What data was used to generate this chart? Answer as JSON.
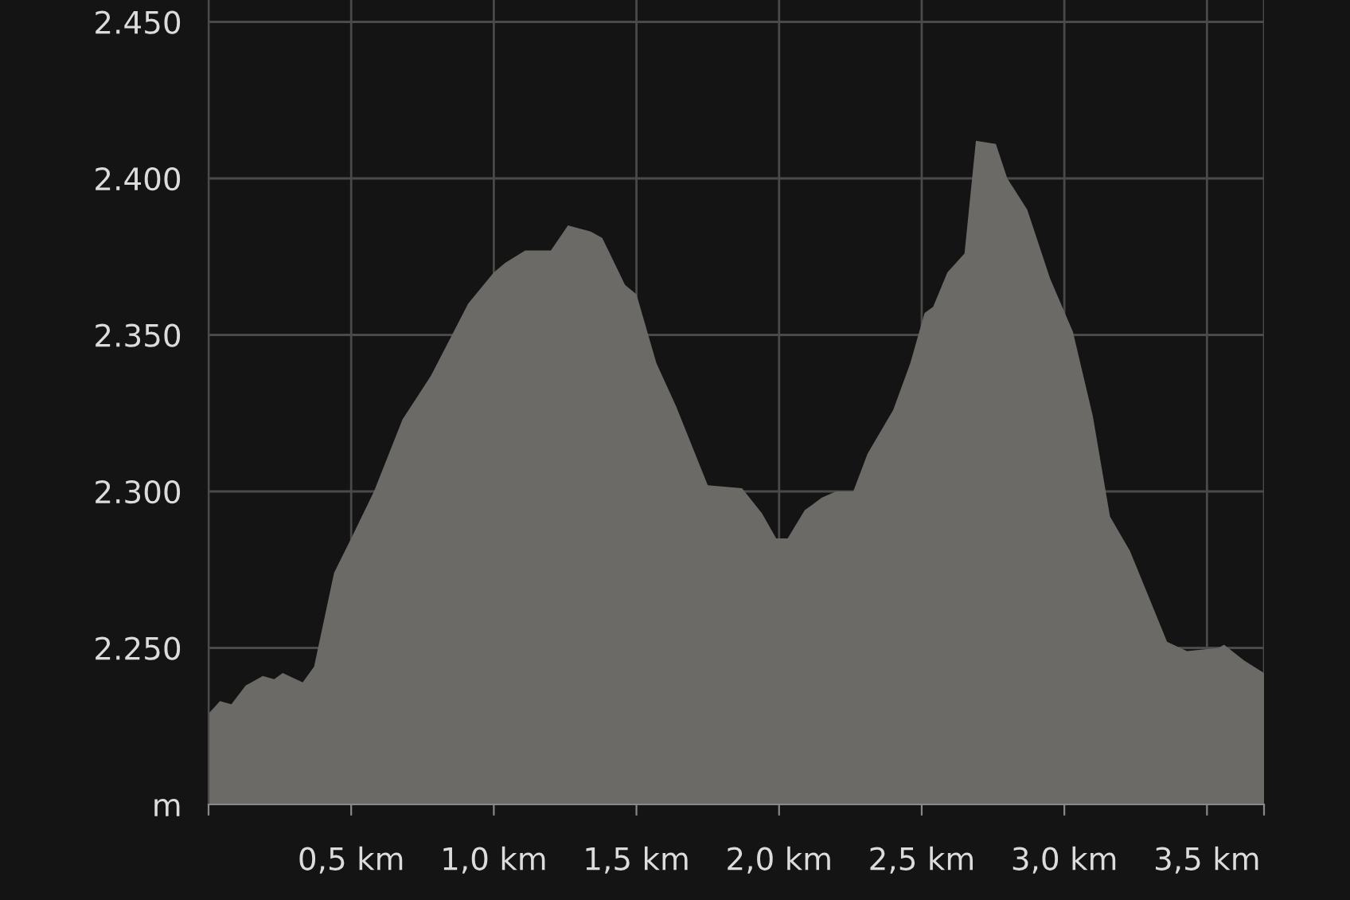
{
  "chart_data": {
    "type": "area",
    "x": [
      0,
      0.04,
      0.08,
      0.13,
      0.19,
      0.23,
      0.26,
      0.33,
      0.37,
      0.44,
      0.5,
      0.58,
      0.68,
      0.78,
      0.91,
      1.0,
      1.04,
      1.11,
      1.2,
      1.26,
      1.34,
      1.38,
      1.46,
      1.5,
      1.57,
      1.64,
      1.75,
      1.87,
      1.94,
      1.99,
      2.03,
      2.09,
      2.15,
      2.2,
      2.26,
      2.31,
      2.4,
      2.46,
      2.51,
      2.54,
      2.59,
      2.65,
      2.69,
      2.76,
      2.8,
      2.87,
      2.95,
      3.03,
      3.1,
      3.16,
      3.23,
      3.36,
      3.43,
      3.54,
      3.56,
      3.63,
      3.7
    ],
    "series": [
      {
        "color": "#6b6a66",
        "values": [
          2229,
          2233,
          2232,
          2238,
          2241,
          2240,
          2242,
          2239,
          2244,
          2274,
          2285,
          2300,
          2323,
          2337,
          2360,
          2370,
          2373,
          2377,
          2377,
          2385,
          2383,
          2381,
          2366,
          2363,
          2341,
          2327,
          2302,
          2301,
          2293,
          2285,
          2285,
          2294,
          2298,
          2300,
          2300,
          2312,
          2326,
          2341,
          2357,
          2359,
          2370,
          2376,
          2412,
          2411,
          2400,
          2390,
          2368,
          2351,
          2324,
          2292,
          2281,
          2252,
          2249,
          2250,
          2251,
          2246,
          2242
        ]
      }
    ],
    "xlim": [
      0,
      3.7
    ],
    "ylim": [
      2200,
      2457
    ],
    "xticks": [
      {
        "value": 0,
        "label": null
      },
      {
        "value": 0.5,
        "label": "0,5 km"
      },
      {
        "value": 1.0,
        "label": "1,0 km"
      },
      {
        "value": 1.5,
        "label": "1,5 km"
      },
      {
        "value": 2.0,
        "label": "2,0 km"
      },
      {
        "value": 2.5,
        "label": "2,5 km"
      },
      {
        "value": 3.0,
        "label": "3,0 km"
      },
      {
        "value": 3.5,
        "label": "3,5 km"
      },
      {
        "value": 3.7,
        "label": null
      }
    ],
    "yticks": [
      {
        "value": 2200,
        "label": "m"
      },
      {
        "value": 2250,
        "label": "2.250"
      },
      {
        "value": 2300,
        "label": "2.300"
      },
      {
        "value": 2350,
        "label": "2.350"
      },
      {
        "value": 2400,
        "label": "2.400"
      },
      {
        "value": 2450,
        "label": "2.450"
      }
    ],
    "grid": true,
    "legend": false
  }
}
